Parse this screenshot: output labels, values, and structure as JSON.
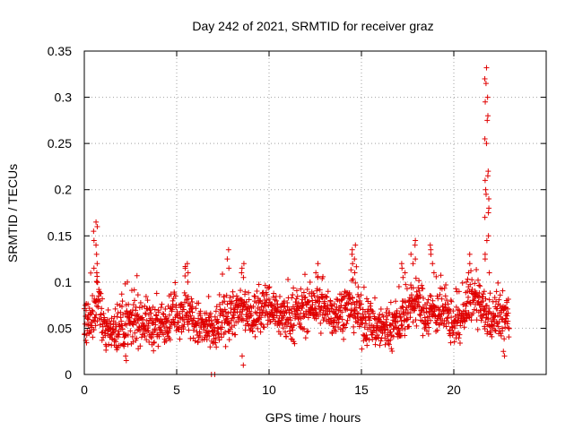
{
  "chart_data": {
    "type": "scatter",
    "title": "Day 242 of 2021, SRMTID for receiver graz",
    "xlabel": "GPS time / hours",
    "ylabel": "SRMTID / TECUs",
    "xlim": [
      0,
      25
    ],
    "ylim": [
      0,
      0.35
    ],
    "xticks": [
      0,
      5,
      10,
      15,
      20
    ],
    "yticks": [
      0,
      0.05,
      0.1,
      0.15,
      0.2,
      0.25,
      0.3,
      0.35
    ],
    "xtick_labels": [
      "0",
      "5",
      "10",
      "15",
      "20"
    ],
    "ytick_labels": [
      "0",
      "0.05",
      "0.1",
      "0.15",
      "0.2",
      "0.25",
      "0.3",
      "0.35"
    ],
    "grid": true,
    "marker": "plus",
    "color": "#e00000",
    "series": [
      {
        "name": "SRMTID",
        "x_start": 0.0,
        "x_step": 0.00833,
        "base_curve": [
          [
            0.0,
            0.06
          ],
          [
            0.3,
            0.055
          ],
          [
            0.6,
            0.07
          ],
          [
            0.7,
            0.09
          ],
          [
            1.0,
            0.05
          ],
          [
            1.5,
            0.045
          ],
          [
            2.0,
            0.05
          ],
          [
            2.5,
            0.055
          ],
          [
            3.0,
            0.06
          ],
          [
            3.5,
            0.055
          ],
          [
            4.0,
            0.05
          ],
          [
            4.5,
            0.06
          ],
          [
            5.0,
            0.065
          ],
          [
            5.5,
            0.07
          ],
          [
            6.0,
            0.055
          ],
          [
            6.5,
            0.05
          ],
          [
            7.0,
            0.045
          ],
          [
            7.5,
            0.06
          ],
          [
            8.0,
            0.065
          ],
          [
            8.5,
            0.07
          ],
          [
            9.0,
            0.06
          ],
          [
            9.5,
            0.07
          ],
          [
            10.0,
            0.075
          ],
          [
            10.5,
            0.065
          ],
          [
            11.0,
            0.06
          ],
          [
            11.5,
            0.065
          ],
          [
            12.0,
            0.07
          ],
          [
            12.5,
            0.075
          ],
          [
            13.0,
            0.07
          ],
          [
            13.5,
            0.065
          ],
          [
            14.0,
            0.07
          ],
          [
            14.5,
            0.075
          ],
          [
            15.0,
            0.06
          ],
          [
            15.5,
            0.055
          ],
          [
            16.0,
            0.05
          ],
          [
            16.5,
            0.05
          ],
          [
            17.0,
            0.055
          ],
          [
            17.5,
            0.07
          ],
          [
            18.0,
            0.08
          ],
          [
            18.5,
            0.065
          ],
          [
            19.0,
            0.07
          ],
          [
            19.5,
            0.065
          ],
          [
            20.0,
            0.055
          ],
          [
            20.5,
            0.06
          ],
          [
            21.0,
            0.085
          ],
          [
            21.5,
            0.07
          ],
          [
            22.0,
            0.06
          ],
          [
            22.5,
            0.065
          ],
          [
            23.0,
            0.06
          ]
        ],
        "spikes": [
          {
            "x": 0.6,
            "values": [
              0.165,
              0.16,
              0.155,
              0.145,
              0.14,
              0.13,
              0.12,
              0.115,
              0.11,
              0.1
            ]
          },
          {
            "x": 2.3,
            "values": [
              0.1,
              0.098,
              0.015,
              0.02
            ]
          },
          {
            "x": 5.5,
            "values": [
              0.12,
              0.115,
              0.11,
              0.1
            ]
          },
          {
            "x": 7.0,
            "values": [
              0.0,
              0.0
            ]
          },
          {
            "x": 7.8,
            "values": [
              0.135,
              0.125,
              0.115
            ]
          },
          {
            "x": 8.6,
            "values": [
              0.12,
              0.115,
              0.11,
              0.105,
              0.01,
              0.02
            ]
          },
          {
            "x": 12.6,
            "values": [
              0.12,
              0.11,
              0.105
            ]
          },
          {
            "x": 14.6,
            "values": [
              0.14,
              0.135,
              0.13,
              0.125,
              0.12,
              0.11
            ]
          },
          {
            "x": 17.3,
            "values": [
              0.12,
              0.115,
              0.11,
              0.105
            ]
          },
          {
            "x": 17.8,
            "values": [
              0.145,
              0.14,
              0.13,
              0.125,
              0.12
            ]
          },
          {
            "x": 18.8,
            "values": [
              0.14,
              0.135,
              0.13,
              0.12
            ]
          },
          {
            "x": 20.8,
            "values": [
              0.13,
              0.12,
              0.11,
              0.1
            ]
          },
          {
            "x": 21.8,
            "values": [
              0.332,
              0.32,
              0.315,
              0.3,
              0.295,
              0.28,
              0.275,
              0.255,
              0.25,
              0.22,
              0.215,
              0.21,
              0.2,
              0.195,
              0.19,
              0.18,
              0.175,
              0.17,
              0.15,
              0.145,
              0.13,
              0.125,
              0.11
            ]
          },
          {
            "x": 22.7,
            "values": [
              0.025,
              0.02
            ]
          }
        ]
      }
    ]
  }
}
